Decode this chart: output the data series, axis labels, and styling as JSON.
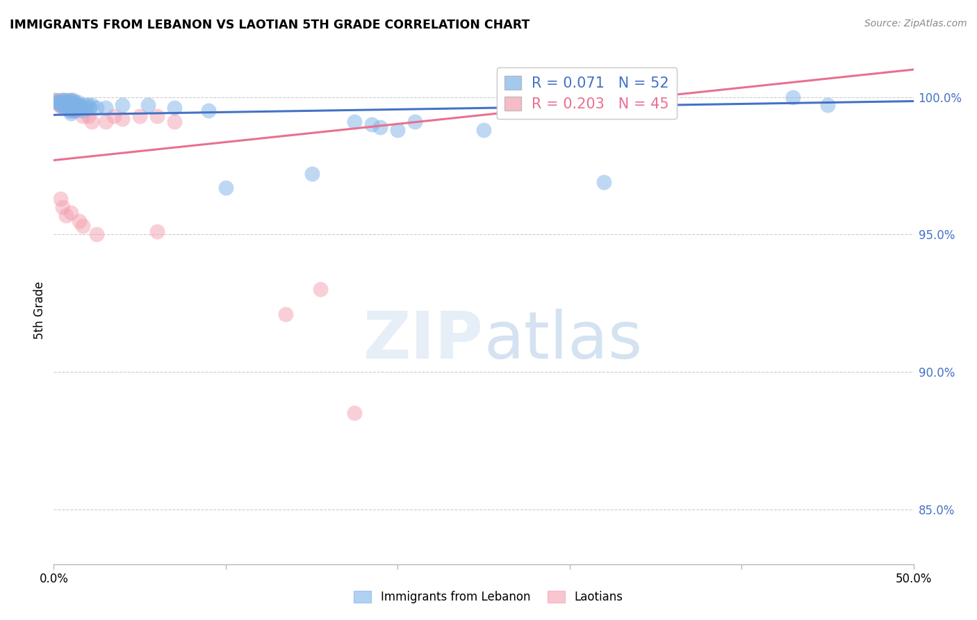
{
  "title": "IMMIGRANTS FROM LEBANON VS LAOTIAN 5TH GRADE CORRELATION CHART",
  "source": "Source: ZipAtlas.com",
  "ylabel": "5th Grade",
  "xlim": [
    0.0,
    0.5
  ],
  "ylim": [
    0.83,
    1.015
  ],
  "blue_color": "#7EB3E8",
  "pink_color": "#F4A0B0",
  "blue_line_color": "#4472C4",
  "pink_line_color": "#E87090",
  "blue_scatter": [
    [
      0.001,
      0.999
    ],
    [
      0.002,
      0.998
    ],
    [
      0.003,
      0.998
    ],
    [
      0.004,
      0.997
    ],
    [
      0.005,
      0.999
    ],
    [
      0.005,
      0.997
    ],
    [
      0.006,
      0.998
    ],
    [
      0.006,
      0.996
    ],
    [
      0.007,
      0.999
    ],
    [
      0.007,
      0.997
    ],
    [
      0.008,
      0.998
    ],
    [
      0.008,
      0.996
    ],
    [
      0.009,
      0.999
    ],
    [
      0.009,
      0.997
    ],
    [
      0.009,
      0.995
    ],
    [
      0.01,
      0.998
    ],
    [
      0.01,
      0.996
    ],
    [
      0.01,
      0.994
    ],
    [
      0.011,
      0.999
    ],
    [
      0.011,
      0.997
    ],
    [
      0.011,
      0.995
    ],
    [
      0.012,
      0.998
    ],
    [
      0.012,
      0.996
    ],
    [
      0.013,
      0.997
    ],
    [
      0.013,
      0.995
    ],
    [
      0.014,
      0.998
    ],
    [
      0.014,
      0.996
    ],
    [
      0.015,
      0.997
    ],
    [
      0.016,
      0.996
    ],
    [
      0.017,
      0.995
    ],
    [
      0.018,
      0.997
    ],
    [
      0.019,
      0.996
    ],
    [
      0.02,
      0.997
    ],
    [
      0.021,
      0.996
    ],
    [
      0.022,
      0.997
    ],
    [
      0.025,
      0.996
    ],
    [
      0.03,
      0.996
    ],
    [
      0.04,
      0.997
    ],
    [
      0.055,
      0.997
    ],
    [
      0.07,
      0.996
    ],
    [
      0.09,
      0.995
    ],
    [
      0.1,
      0.967
    ],
    [
      0.15,
      0.972
    ],
    [
      0.175,
      0.991
    ],
    [
      0.185,
      0.99
    ],
    [
      0.19,
      0.989
    ],
    [
      0.2,
      0.988
    ],
    [
      0.21,
      0.991
    ],
    [
      0.25,
      0.988
    ],
    [
      0.32,
      0.969
    ],
    [
      0.43,
      1.0
    ],
    [
      0.45,
      0.997
    ]
  ],
  "pink_scatter": [
    [
      0.001,
      0.999
    ],
    [
      0.002,
      0.998
    ],
    [
      0.003,
      0.997
    ],
    [
      0.004,
      0.999
    ],
    [
      0.004,
      0.997
    ],
    [
      0.005,
      0.998
    ],
    [
      0.005,
      0.996
    ],
    [
      0.006,
      0.999
    ],
    [
      0.006,
      0.997
    ],
    [
      0.007,
      0.998
    ],
    [
      0.007,
      0.996
    ],
    [
      0.008,
      0.997
    ],
    [
      0.009,
      0.998
    ],
    [
      0.009,
      0.996
    ],
    [
      0.01,
      0.999
    ],
    [
      0.01,
      0.997
    ],
    [
      0.01,
      0.995
    ],
    [
      0.011,
      0.998
    ],
    [
      0.011,
      0.996
    ],
    [
      0.012,
      0.997
    ],
    [
      0.012,
      0.995
    ],
    [
      0.013,
      0.997
    ],
    [
      0.014,
      0.996
    ],
    [
      0.015,
      0.997
    ],
    [
      0.016,
      0.996
    ],
    [
      0.017,
      0.993
    ],
    [
      0.02,
      0.993
    ],
    [
      0.022,
      0.991
    ],
    [
      0.03,
      0.991
    ],
    [
      0.035,
      0.993
    ],
    [
      0.04,
      0.992
    ],
    [
      0.05,
      0.993
    ],
    [
      0.06,
      0.993
    ],
    [
      0.07,
      0.991
    ],
    [
      0.004,
      0.963
    ],
    [
      0.005,
      0.96
    ],
    [
      0.007,
      0.957
    ],
    [
      0.01,
      0.958
    ],
    [
      0.015,
      0.955
    ],
    [
      0.017,
      0.953
    ],
    [
      0.025,
      0.95
    ],
    [
      0.06,
      0.951
    ],
    [
      0.135,
      0.921
    ],
    [
      0.155,
      0.93
    ],
    [
      0.175,
      0.885
    ]
  ],
  "blue_R": 0.071,
  "blue_N": 52,
  "pink_R": 0.203,
  "pink_N": 45,
  "blue_line_x": [
    0.0,
    0.5
  ],
  "blue_line_y": [
    0.9935,
    0.9985
  ],
  "pink_line_x": [
    0.0,
    0.5
  ],
  "pink_line_y": [
    0.977,
    1.01
  ]
}
